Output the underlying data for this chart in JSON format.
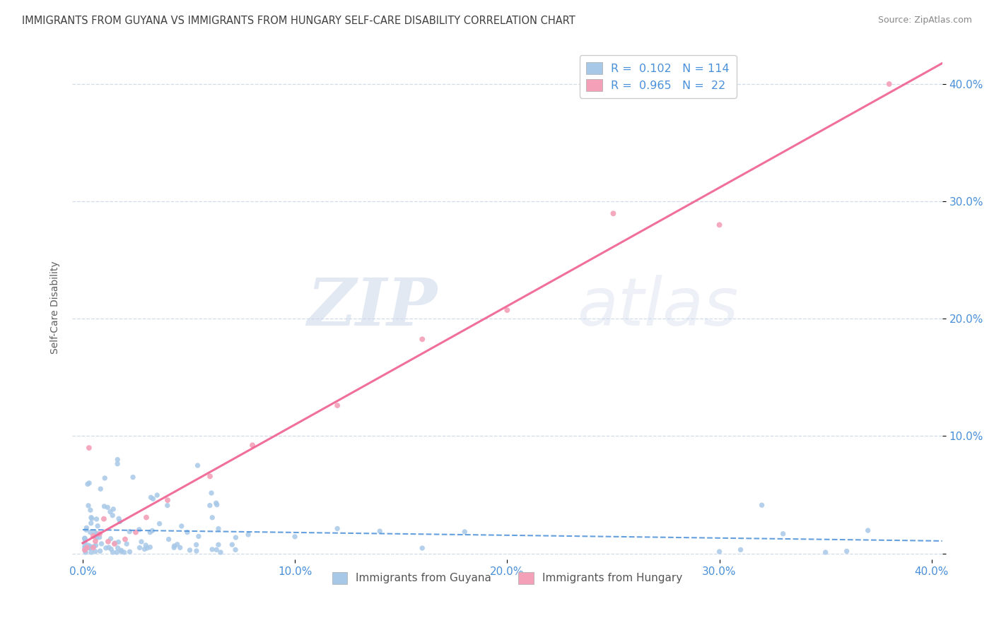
{
  "title": "IMMIGRANTS FROM GUYANA VS IMMIGRANTS FROM HUNGARY SELF-CARE DISABILITY CORRELATION CHART",
  "source": "Source: ZipAtlas.com",
  "ylabel": "Self-Care Disability",
  "watermark_zip": "ZIP",
  "watermark_atlas": "atlas",
  "xlim": [
    -0.005,
    0.405
  ],
  "ylim": [
    -0.005,
    0.425
  ],
  "xticks": [
    0.0,
    0.1,
    0.2,
    0.3,
    0.4
  ],
  "yticks": [
    0.0,
    0.1,
    0.2,
    0.3,
    0.4
  ],
  "xtick_labels": [
    "0.0%",
    "10.0%",
    "20.0%",
    "30.0%",
    "40.0%"
  ],
  "ytick_labels": [
    "",
    "10.0%",
    "20.0%",
    "30.0%",
    "40.0%"
  ],
  "guyana_scatter_color": "#a8c8e8",
  "hungary_scatter_color": "#f4a0b8",
  "guyana_line_color": "#4a90d9",
  "hungary_line_color": "#f06090",
  "guyana_label": "Immigrants from Guyana",
  "hungary_label": "Immigrants from Hungary",
  "guyana_R": 0.102,
  "guyana_N": 114,
  "hungary_R": 0.965,
  "hungary_N": 22,
  "background_color": "#ffffff",
  "grid_color": "#d0dcea",
  "title_color": "#404040",
  "axis_tick_color": "#4a90d9",
  "ylabel_color": "#606060",
  "source_color": "#888888",
  "legend_text_color": "#4a90d9"
}
